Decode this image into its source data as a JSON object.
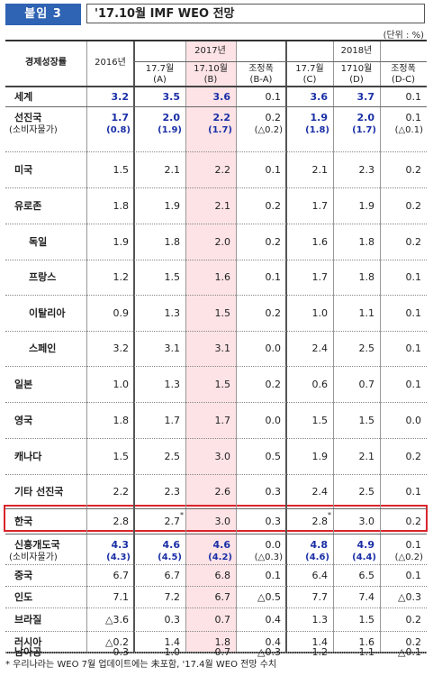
{
  "header": {
    "badge": "붙임 3",
    "title": "'17.10월 IMF WEO 전망",
    "unit": "(단위 : %)"
  },
  "table": {
    "corner_label": "경제성장률",
    "col_2016": "2016년",
    "group_2017": "2017년",
    "group_2018": "2018년",
    "sub_headers": {
      "c2017a": [
        "17.7월",
        "(A)"
      ],
      "c2017b": [
        "17.10월",
        "(B)"
      ],
      "c2017diff": [
        "조정폭",
        "(B-A)"
      ],
      "c2018c": [
        "17.7월",
        "(C)"
      ],
      "c2018d": [
        "1710월",
        "(D)"
      ],
      "c2018diff": [
        "조정폭",
        "(D-C)"
      ]
    },
    "rows": [
      {
        "label": "세계",
        "vals": [
          "3.2",
          "3.5",
          "3.6",
          "0.1",
          "3.6",
          "3.7",
          "0.1"
        ],
        "style": "world"
      },
      {
        "label": "선진국",
        "sub_label": "(소비자물가)",
        "vals": [
          "1.7",
          "2.0",
          "2.2",
          "0.2",
          "1.9",
          "2.0",
          "0.1"
        ],
        "subvals": [
          "(0.8)",
          "(1.9)",
          "(1.7)",
          "(△0.2)",
          "(1.8)",
          "(1.7)",
          "(△0.1)"
        ],
        "style": "group"
      },
      {
        "label": "미국",
        "vals": [
          "1.5",
          "2.1",
          "2.2",
          "0.1",
          "2.1",
          "2.3",
          "0.2"
        ]
      },
      {
        "label": "유로존",
        "vals": [
          "1.8",
          "1.9",
          "2.1",
          "0.2",
          "1.7",
          "1.9",
          "0.2"
        ]
      },
      {
        "label": "독일",
        "vals": [
          "1.9",
          "1.8",
          "2.0",
          "0.2",
          "1.6",
          "1.8",
          "0.2"
        ],
        "indent": true
      },
      {
        "label": "프랑스",
        "vals": [
          "1.2",
          "1.5",
          "1.6",
          "0.1",
          "1.7",
          "1.8",
          "0.1"
        ],
        "indent": true
      },
      {
        "label": "이탈리아",
        "vals": [
          "0.9",
          "1.3",
          "1.5",
          "0.2",
          "1.0",
          "1.1",
          "0.1"
        ],
        "indent": true
      },
      {
        "label": "스페인",
        "vals": [
          "3.2",
          "3.1",
          "3.1",
          "0.0",
          "2.4",
          "2.5",
          "0.1"
        ],
        "indent": true
      },
      {
        "label": "일본",
        "vals": [
          "1.0",
          "1.3",
          "1.5",
          "0.2",
          "0.6",
          "0.7",
          "0.1"
        ]
      },
      {
        "label": "영국",
        "vals": [
          "1.8",
          "1.7",
          "1.7",
          "0.0",
          "1.5",
          "1.5",
          "0.0"
        ]
      },
      {
        "label": "캐나다",
        "vals": [
          "1.5",
          "2.5",
          "3.0",
          "0.5",
          "1.9",
          "2.1",
          "0.2"
        ]
      },
      {
        "label": "기타 선진국",
        "vals": [
          "2.2",
          "2.3",
          "2.6",
          "0.3",
          "2.4",
          "2.5",
          "0.1"
        ]
      },
      {
        "label": "한국",
        "vals": [
          "2.8",
          "2.7",
          "3.0",
          "0.3",
          "2.8",
          "3.0",
          "0.2"
        ],
        "starred": [
          1,
          4
        ],
        "style": "korea"
      },
      {
        "label": "신흥개도국",
        "sub_label": "(소비자물가)",
        "vals": [
          "4.3",
          "4.6",
          "4.6",
          "0.0",
          "4.8",
          "4.9",
          "0.1"
        ],
        "subvals": [
          "(4.3)",
          "(4.5)",
          "(4.2)",
          "(△0.3)",
          "(4.6)",
          "(4.4)",
          "(△0.2)"
        ],
        "style": "group"
      },
      {
        "label": "중국",
        "vals": [
          "6.7",
          "6.7",
          "6.8",
          "0.1",
          "6.4",
          "6.5",
          "0.1"
        ]
      },
      {
        "label": "인도",
        "vals": [
          "7.1",
          "7.2",
          "6.7",
          "△0.5",
          "7.7",
          "7.4",
          "△0.3"
        ]
      },
      {
        "label": "브라질",
        "vals": [
          "△3.6",
          "0.3",
          "0.7",
          "0.4",
          "1.3",
          "1.5",
          "0.2"
        ]
      },
      {
        "label": "러시아",
        "vals": [
          "△0.2",
          "1.4",
          "1.8",
          "0.4",
          "1.4",
          "1.6",
          "0.2"
        ]
      },
      {
        "label": "남아공",
        "vals": [
          "0.3",
          "1.0",
          "0.7",
          "△0.3",
          "1.2",
          "1.1",
          "△0.1"
        ]
      }
    ],
    "star_mark": "*"
  },
  "footnote": "* 우리나라는 WEO 7월 업데이트에는 未포함, '17.4월 WEO 전망 수치"
}
